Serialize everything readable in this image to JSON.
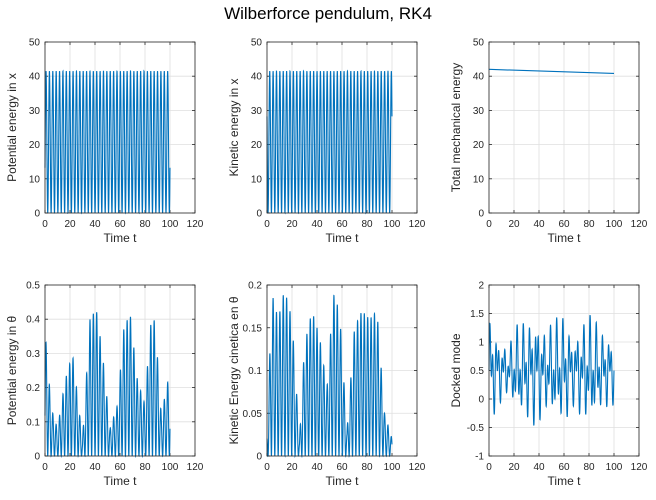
{
  "figure": {
    "title": "Wilberforce pendulum, RK4",
    "line_color": "#0072bd",
    "grid_color": "#dfdfdf",
    "axis_color": "#262626"
  },
  "chart_data": [
    {
      "type": "line",
      "xlabel": "Time t",
      "ylabel": "Potential energy in x",
      "xlim": [
        0,
        120
      ],
      "ylim": [
        0,
        50
      ],
      "xticks": [
        "0",
        "20",
        "40",
        "60",
        "80",
        "100",
        "120"
      ],
      "yticks": [
        "0",
        "10",
        "20",
        "30",
        "40",
        "50"
      ],
      "grid": true,
      "series": [
        {
          "x_range": [
            0,
            100
          ],
          "min": 0,
          "max": 41.5,
          "oscillations": 37,
          "shape": "sin2",
          "trend": 0
        }
      ]
    },
    {
      "type": "line",
      "xlabel": "Time t",
      "ylabel": "Kinetic energy in x",
      "xlim": [
        0,
        120
      ],
      "ylim": [
        0,
        50
      ],
      "xticks": [
        "0",
        "20",
        "40",
        "60",
        "80",
        "100",
        "120"
      ],
      "yticks": [
        "0",
        "10",
        "20",
        "30",
        "40",
        "50"
      ],
      "grid": true,
      "series": [
        {
          "x_range": [
            0,
            100
          ],
          "min": 0,
          "max": 41.5,
          "oscillations": 37,
          "shape": "cos2",
          "trend": 0
        }
      ]
    },
    {
      "type": "line",
      "xlabel": "Time t",
      "ylabel": "Total mechanical energy",
      "xlim": [
        0,
        120
      ],
      "ylim": [
        0,
        50
      ],
      "xticks": [
        "0",
        "20",
        "40",
        "60",
        "80",
        "100",
        "120"
      ],
      "yticks": [
        "0",
        "10",
        "20",
        "30",
        "40",
        "50"
      ],
      "grid": true,
      "series": [
        {
          "x": [
            0,
            100
          ],
          "y": [
            42,
            40.8
          ]
        }
      ]
    },
    {
      "type": "line",
      "xlabel": "Time t",
      "ylabel": "Potential energy in θ",
      "xlim": [
        0,
        120
      ],
      "ylim": [
        0,
        0.5
      ],
      "xticks": [
        "0",
        "20",
        "40",
        "60",
        "80",
        "100",
        "120"
      ],
      "yticks": [
        "0",
        "0.1",
        "0.2",
        "0.3",
        "0.4",
        "0.5"
      ],
      "grid": true,
      "series": [
        {
          "x_range": [
            0,
            100
          ],
          "min": 0,
          "oscillations": 37,
          "shape": "sin2",
          "peak_envelope": [
            [
              0,
              0.37
            ],
            [
              5,
              0.14
            ],
            [
              10,
              0.08
            ],
            [
              16,
              0.22
            ],
            [
              22,
              0.3
            ],
            [
              30,
              0.05
            ],
            [
              36,
              0.4
            ],
            [
              41,
              0.43
            ],
            [
              46,
              0.3
            ],
            [
              52,
              0.08
            ],
            [
              58,
              0.15
            ],
            [
              63,
              0.37
            ],
            [
              68,
              0.42
            ],
            [
              74,
              0.22
            ],
            [
              80,
              0.15
            ],
            [
              84,
              0.38
            ],
            [
              88,
              0.4
            ],
            [
              93,
              0.12
            ],
            [
              100,
              0.25
            ]
          ]
        }
      ]
    },
    {
      "type": "line",
      "xlabel": "Time t",
      "ylabel": "Kinetic Energy cinetica en θ",
      "xlim": [
        0,
        120
      ],
      "ylim": [
        0,
        0.2
      ],
      "xticks": [
        "0",
        "20",
        "40",
        "60",
        "80",
        "100",
        "120"
      ],
      "yticks": [
        "0",
        "0.05",
        "0.1",
        "0.15",
        "0.2"
      ],
      "grid": true,
      "series": [
        {
          "x_range": [
            0,
            100
          ],
          "min": 0,
          "oscillations": 37,
          "shape": "cos2",
          "peak_envelope": [
            [
              0,
              0.03
            ],
            [
              4,
              0.19
            ],
            [
              9,
              0.16
            ],
            [
              14,
              0.195
            ],
            [
              20,
              0.16
            ],
            [
              26,
              0.02
            ],
            [
              30,
              0.13
            ],
            [
              36,
              0.17
            ],
            [
              42,
              0.14
            ],
            [
              48,
              0.08
            ],
            [
              53,
              0.19
            ],
            [
              58,
              0.17
            ],
            [
              64,
              0.03
            ],
            [
              70,
              0.15
            ],
            [
              76,
              0.17
            ],
            [
              82,
              0.16
            ],
            [
              88,
              0.17
            ],
            [
              94,
              0.05
            ],
            [
              100,
              0.02
            ]
          ]
        }
      ]
    },
    {
      "type": "line",
      "xlabel": "Time t",
      "ylabel": "Docked mode",
      "xlim": [
        0,
        120
      ],
      "ylim": [
        -1,
        2
      ],
      "xticks": [
        "0",
        "20",
        "40",
        "60",
        "80",
        "100",
        "120"
      ],
      "yticks": [
        "-1",
        "-0.5",
        "0",
        "0.5",
        "1",
        "1.5",
        "2"
      ],
      "grid": true,
      "series": [
        {
          "x_range": [
            0,
            100
          ],
          "oscillations": 30,
          "shape": "sin",
          "baseline": 0.5,
          "peak_envelope": [
            [
              0,
              1.0
            ],
            [
              8,
              0.6
            ],
            [
              15,
              0.4
            ],
            [
              22,
              0.8
            ],
            [
              30,
              0.9
            ],
            [
              38,
              1.0
            ],
            [
              45,
              0.7
            ],
            [
              52,
              0.9
            ],
            [
              60,
              1.0
            ],
            [
              68,
              0.6
            ],
            [
              75,
              0.9
            ],
            [
              82,
              1.0
            ],
            [
              90,
              0.7
            ],
            [
              100,
              0.6
            ]
          ]
        }
      ]
    }
  ]
}
